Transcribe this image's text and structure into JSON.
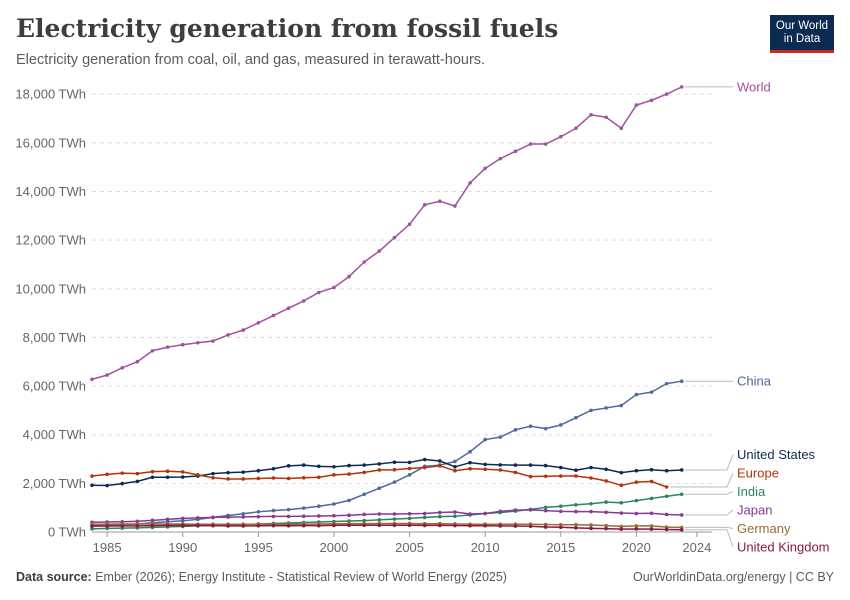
{
  "header": {
    "title": "Electricity generation from fossil fuels",
    "subtitle": "Electricity generation from coal, oil, and gas, measured in terawatt-hours."
  },
  "logo": {
    "line1": "Our World",
    "line2": "in Data"
  },
  "footer": {
    "source_label": "Data source:",
    "source_text": "Ember (2026); Energy Institute - Statistical Review of World Energy (2025)",
    "site": "OurWorldinData.org/energy | CC BY"
  },
  "chart_data": {
    "type": "line",
    "title": "Electricity generation from fossil fuels",
    "x_ticks": [
      1985,
      1990,
      1995,
      2000,
      2005,
      2010,
      2015,
      2020,
      2024
    ],
    "y_ticks": [
      0,
      2000,
      4000,
      6000,
      8000,
      10000,
      12000,
      14000,
      16000,
      18000
    ],
    "y_tick_labels": [
      "0 TWh",
      "2,000 TWh",
      "4,000 TWh",
      "6,000 TWh",
      "8,000 TWh",
      "10,000 TWh",
      "12,000 TWh",
      "14,000 TWh",
      "16,000 TWh",
      "18,000 TWh"
    ],
    "xlim": [
      1984,
      2025
    ],
    "ylim": [
      0,
      18500
    ],
    "grid": "horizontal-dashed",
    "series": [
      {
        "name": "World",
        "color": "#a052a0",
        "start": 1984,
        "values": [
          6280,
          6450,
          6750,
          7000,
          7450,
          7600,
          7700,
          7780,
          7850,
          8100,
          8300,
          8600,
          8900,
          9200,
          9500,
          9850,
          10050,
          10500,
          11100,
          11550,
          12100,
          12650,
          13450,
          13600,
          13400,
          14350,
          14950,
          15350,
          15650,
          15950,
          15950,
          16250,
          16600,
          17150,
          17050,
          16600,
          17550,
          17750,
          18000,
          18300
        ]
      },
      {
        "name": "China",
        "color": "#4c6a9c",
        "start": 1984,
        "values": [
          250,
          270,
          300,
          330,
          380,
          420,
          460,
          520,
          600,
          680,
          750,
          830,
          880,
          920,
          980,
          1060,
          1150,
          1300,
          1550,
          1800,
          2050,
          2350,
          2700,
          2750,
          2900,
          3300,
          3800,
          3900,
          4200,
          4350,
          4250,
          4400,
          4700,
          5000,
          5100,
          5200,
          5650,
          5750,
          6100,
          6200
        ]
      },
      {
        "name": "United States",
        "color": "#0c2b50",
        "start": 1984,
        "values": [
          1920,
          1910,
          1990,
          2080,
          2250,
          2250,
          2260,
          2300,
          2400,
          2440,
          2460,
          2520,
          2600,
          2720,
          2750,
          2700,
          2680,
          2730,
          2750,
          2800,
          2870,
          2860,
          2980,
          2920,
          2680,
          2850,
          2780,
          2760,
          2750,
          2750,
          2730,
          2650,
          2540,
          2650,
          2580,
          2440,
          2520,
          2560,
          2520,
          2550
        ]
      },
      {
        "name": "Europe",
        "color": "#b13507",
        "start": 1984,
        "values": [
          2300,
          2370,
          2420,
          2400,
          2480,
          2500,
          2470,
          2350,
          2230,
          2180,
          2180,
          2200,
          2220,
          2200,
          2230,
          2250,
          2350,
          2380,
          2450,
          2550,
          2560,
          2610,
          2650,
          2720,
          2520,
          2600,
          2580,
          2550,
          2450,
          2280,
          2290,
          2300,
          2300,
          2220,
          2100,
          1920,
          2050,
          2080,
          1850
        ]
      },
      {
        "name": "India",
        "color": "#2c8465",
        "start": 1984,
        "values": [
          130,
          150,
          160,
          170,
          190,
          210,
          230,
          250,
          270,
          290,
          310,
          330,
          350,
          370,
          390,
          410,
          430,
          450,
          470,
          500,
          530,
          560,
          600,
          630,
          650,
          700,
          760,
          800,
          860,
          930,
          1010,
          1060,
          1120,
          1160,
          1230,
          1200,
          1290,
          1380,
          1470,
          1550
        ]
      },
      {
        "name": "Japan",
        "color": "#883999",
        "start": 1984,
        "values": [
          400,
          410,
          420,
          440,
          480,
          520,
          560,
          580,
          600,
          610,
          620,
          630,
          640,
          640,
          650,
          660,
          670,
          690,
          720,
          740,
          740,
          750,
          760,
          800,
          820,
          740,
          760,
          850,
          900,
          910,
          880,
          850,
          840,
          840,
          810,
          780,
          760,
          770,
          720,
          700
        ]
      },
      {
        "name": "Germany",
        "color": "#996d39",
        "start": 1984,
        "values": [
          320,
          325,
          330,
          330,
          330,
          330,
          330,
          320,
          320,
          320,
          320,
          320,
          320,
          320,
          320,
          330,
          340,
          345,
          345,
          350,
          350,
          350,
          340,
          345,
          330,
          320,
          320,
          320,
          320,
          320,
          310,
          300,
          300,
          290,
          260,
          230,
          250,
          250,
          200,
          190
        ]
      },
      {
        "name": "United Kingdom",
        "color": "#8b1a3c",
        "start": 1984,
        "values": [
          240,
          245,
          250,
          250,
          260,
          270,
          270,
          265,
          260,
          250,
          250,
          255,
          260,
          255,
          260,
          260,
          270,
          275,
          275,
          280,
          275,
          275,
          270,
          270,
          265,
          255,
          255,
          250,
          245,
          235,
          205,
          195,
          170,
          150,
          140,
          120,
          125,
          120,
          105,
          90
        ]
      }
    ]
  }
}
